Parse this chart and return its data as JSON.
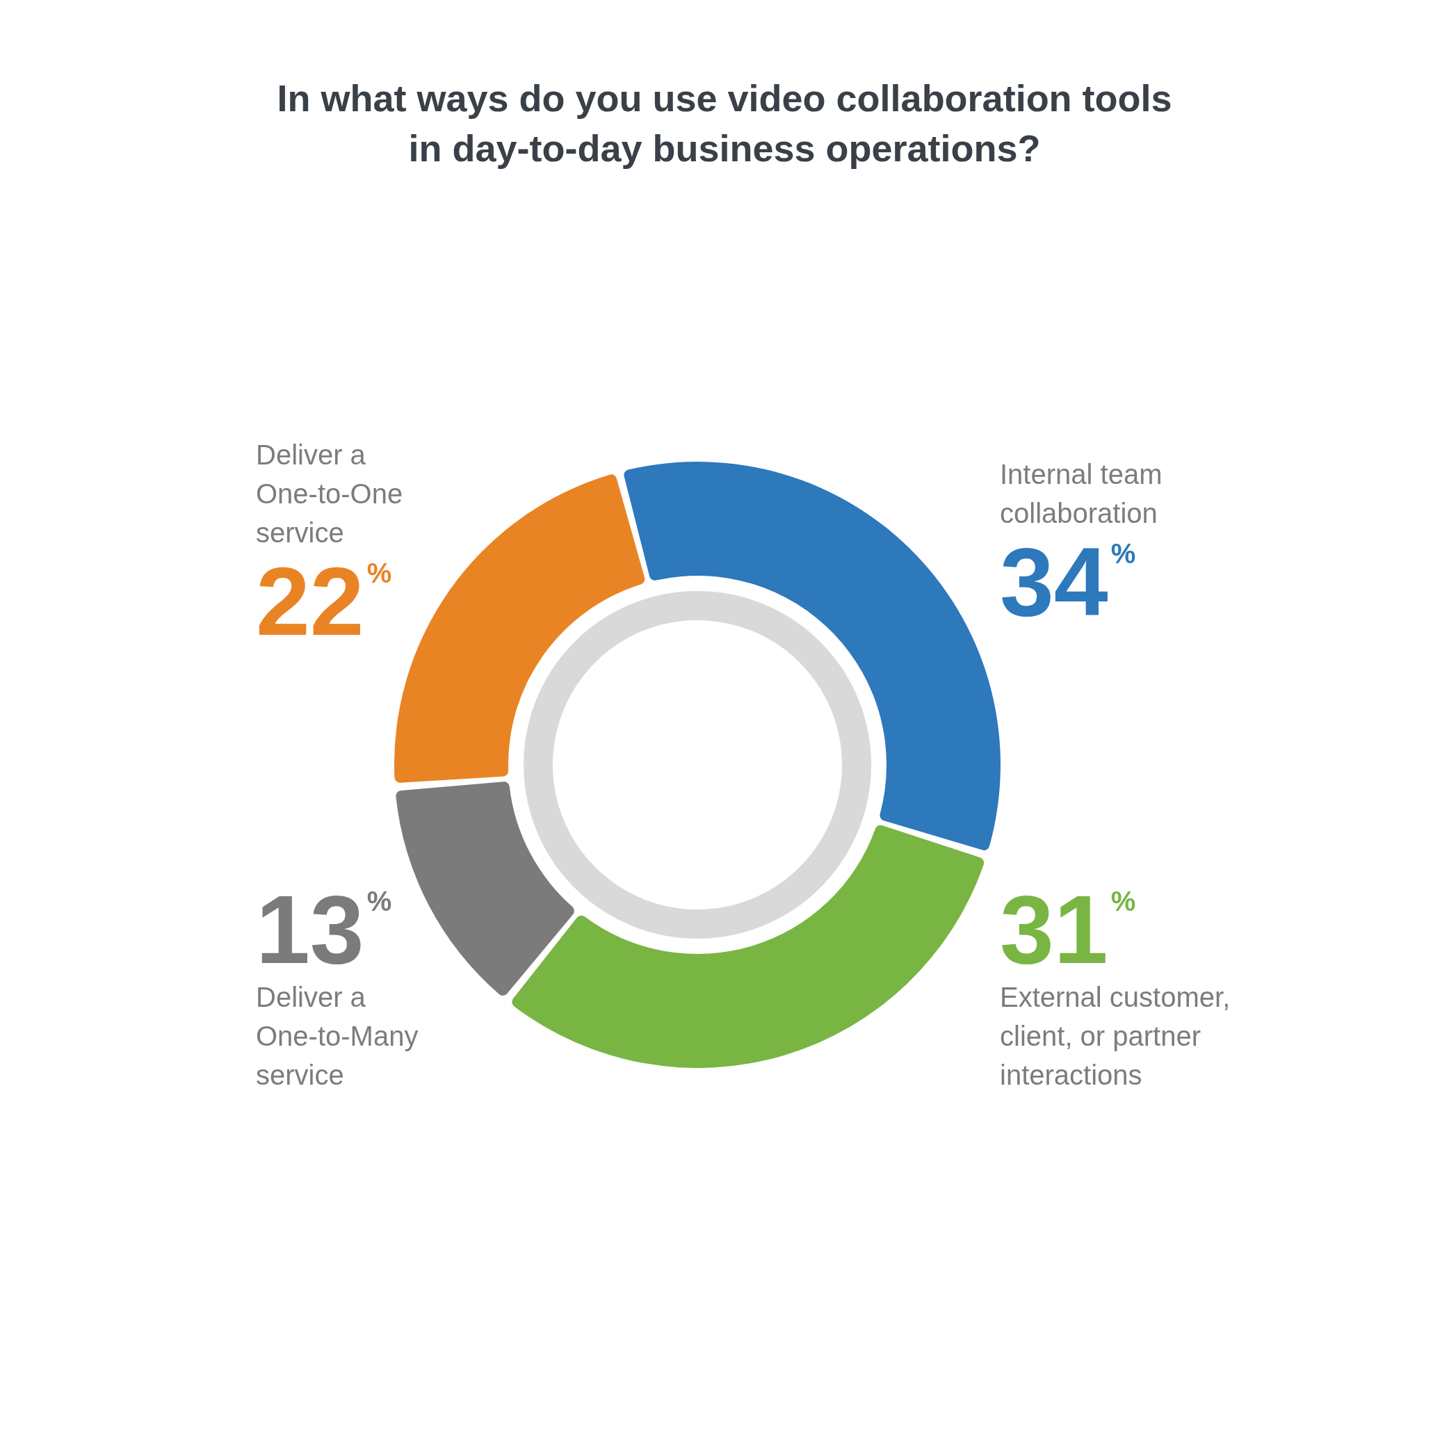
{
  "chart_data": {
    "type": "donut",
    "title": "In what ways do you use video collaboration tools\nin day-to-day business operations?",
    "categories": [
      "Internal team collaboration",
      "External customer, client, or partner interactions",
      "Deliver a One-to-Many service",
      "Deliver a One-to-One service"
    ],
    "values": [
      34,
      31,
      13,
      22
    ],
    "colors": [
      "#2e78bc",
      "#78b543",
      "#7b7b7b",
      "#e98424"
    ],
    "value_labels": [
      "34%",
      "31%",
      "13%",
      "22%"
    ],
    "legend": false
  }
}
